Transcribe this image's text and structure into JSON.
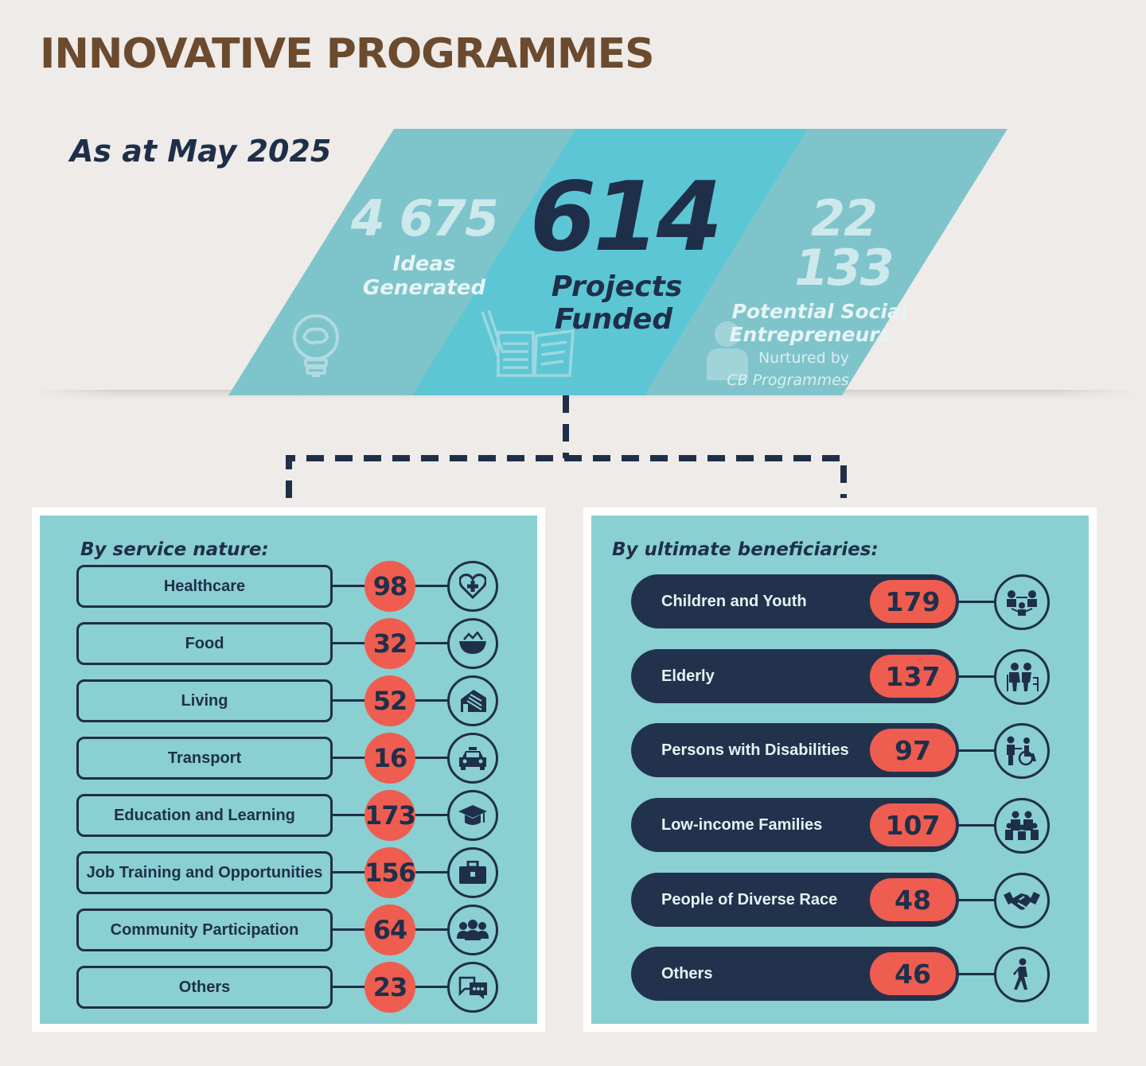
{
  "title": "INNOVATIVE PROGRAMMES",
  "as_at": "As at May 2025",
  "stats": {
    "ideas": {
      "value": "4 675",
      "label_line1": "Ideas",
      "label_line2": "Generated",
      "icon": "lightbulb-brain-icon"
    },
    "projects": {
      "value": "614",
      "label_line1": "Projects",
      "label_line2": "Funded",
      "icon": "pencil-documents-icon"
    },
    "entrepreneurs": {
      "value": "22 133",
      "label_line1": "Potential Social",
      "label_line2": "Entrepreneurs",
      "sub_line1": "Nurtured by",
      "sub_line2": "CB Programmes",
      "icon": "person-icon"
    }
  },
  "service": {
    "title": "By service nature:",
    "items": [
      {
        "label": "Healthcare",
        "value": "98",
        "icon": "heart-medical-icon"
      },
      {
        "label": "Food",
        "value": "32",
        "icon": "food-bowl-icon"
      },
      {
        "label": "Living",
        "value": "52",
        "icon": "house-icon"
      },
      {
        "label": "Transport",
        "value": "16",
        "icon": "taxi-icon"
      },
      {
        "label": "Education and Learning",
        "value": "173",
        "icon": "graduation-cap-icon"
      },
      {
        "label": "Job Training and Opportunities",
        "value": "156",
        "icon": "briefcase-icon"
      },
      {
        "label": "Community Participation",
        "value": "64",
        "icon": "group-icon"
      },
      {
        "label": "Others",
        "value": "23",
        "icon": "speech-bubbles-icon"
      }
    ]
  },
  "beneficiaries": {
    "title": "By ultimate beneficiaries:",
    "items": [
      {
        "label": "Children and Youth",
        "value": "179",
        "icon": "children-icon"
      },
      {
        "label": "Elderly",
        "value": "137",
        "icon": "elderly-icon"
      },
      {
        "label": "Persons with Disabilities",
        "value": "97",
        "icon": "wheelchair-icon"
      },
      {
        "label": "Low-income Families",
        "value": "107",
        "icon": "family-icon"
      },
      {
        "label": "People of Diverse Race",
        "value": "48",
        "icon": "handshake-icon"
      },
      {
        "label": "Others",
        "value": "46",
        "icon": "walking-person-icon"
      }
    ]
  },
  "colors": {
    "navy": "#1f2f4a",
    "coral": "#ee5d50",
    "teal_panel": "#8acfd2",
    "title_brown": "#6b4a2e",
    "background": "#eeebe8"
  }
}
